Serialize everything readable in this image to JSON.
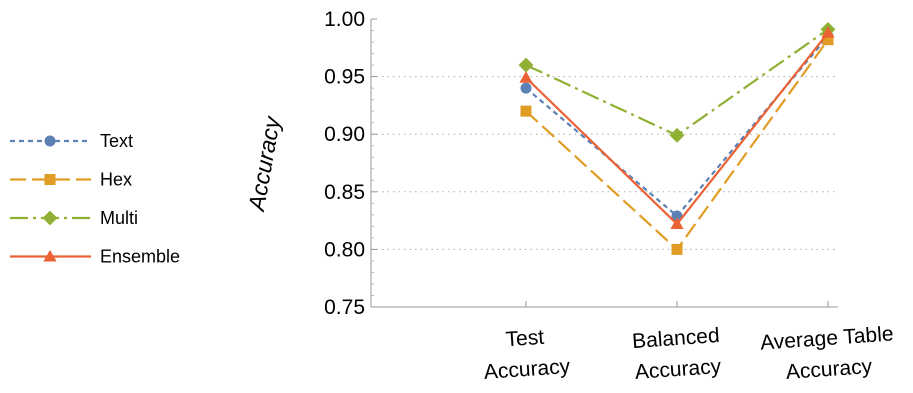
{
  "chart_data": {
    "type": "line",
    "categories": [
      [
        "Test",
        "Accuracy"
      ],
      [
        "Balanced",
        "Accuracy"
      ],
      [
        "Average Table",
        "Accuracy"
      ]
    ],
    "ylabel": "Accuracy",
    "ylim": [
      0.75,
      1.0
    ],
    "yticks": [
      "0.75",
      "0.80",
      "0.85",
      "0.90",
      "0.95",
      "1.00"
    ],
    "grid": "horizontal dotted",
    "legend_position": "left",
    "series": [
      {
        "name": "Text",
        "values": [
          0.94,
          0.829,
          0.985
        ],
        "color": "#5e81b5",
        "marker": "circle",
        "dash": "dashed"
      },
      {
        "name": "Hex",
        "values": [
          0.92,
          0.8,
          0.982
        ],
        "color": "#e19c24",
        "marker": "square",
        "dash": "longdash"
      },
      {
        "name": "Multi",
        "values": [
          0.96,
          0.899,
          0.991
        ],
        "color": "#8fb032",
        "marker": "diamond",
        "dash": "dashdot"
      },
      {
        "name": "Ensemble",
        "values": [
          0.949,
          0.822,
          0.988
        ],
        "color": "#eb6235",
        "marker": "triangle",
        "dash": "solid"
      }
    ]
  }
}
